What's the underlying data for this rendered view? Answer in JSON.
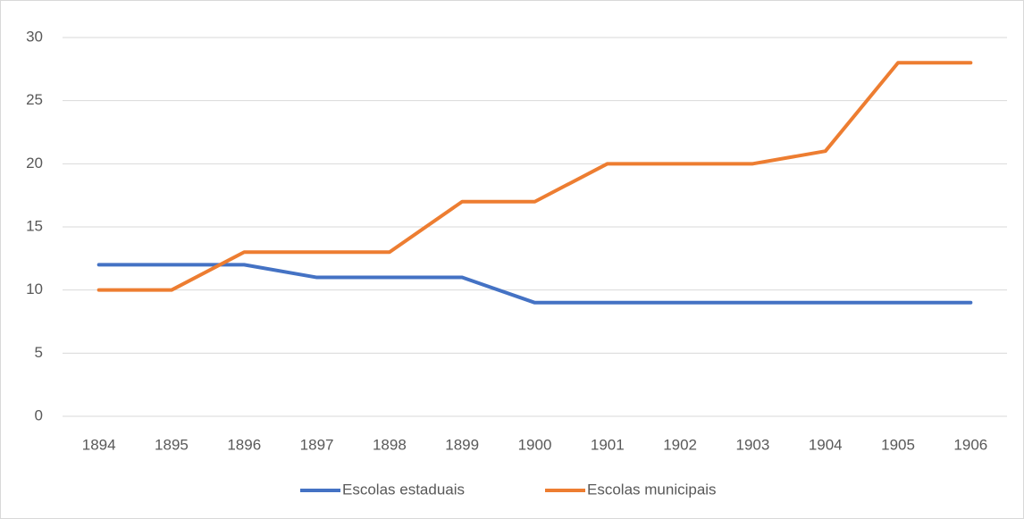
{
  "chart_data": {
    "type": "line",
    "categories": [
      "1894",
      "1895",
      "1896",
      "1897",
      "1898",
      "1899",
      "1900",
      "1901",
      "1902",
      "1903",
      "1904",
      "1905",
      "1906"
    ],
    "series": [
      {
        "name": "Escolas estaduais",
        "color": "#4472c4",
        "values": [
          12,
          12,
          12,
          11,
          11,
          11,
          9,
          9,
          9,
          9,
          9,
          9,
          9
        ]
      },
      {
        "name": "Escolas municipais",
        "color": "#ed7d31",
        "values": [
          10,
          10,
          13,
          13,
          13,
          17,
          17,
          20,
          20,
          20,
          21,
          28,
          28
        ]
      }
    ],
    "ylim": [
      0,
      30
    ],
    "yticks": [
      0,
      5,
      10,
      15,
      20,
      25,
      30
    ],
    "grid": true,
    "legend": "bottom"
  }
}
